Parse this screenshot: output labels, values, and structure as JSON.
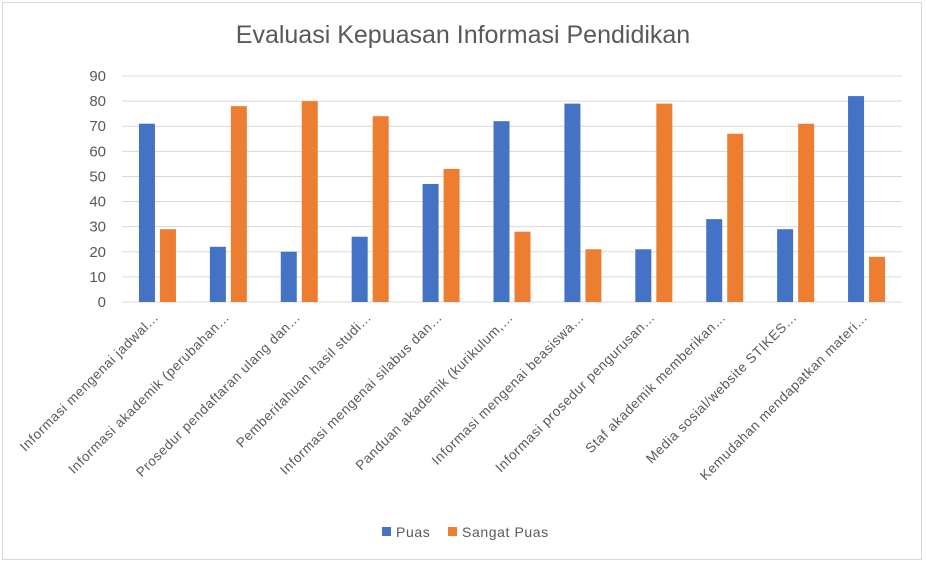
{
  "chart_data": {
    "type": "bar",
    "title": "Evaluasi Kepuasan Informasi Pendidikan",
    "xlabel": "",
    "ylabel": "",
    "ylim": [
      0,
      90
    ],
    "y_ticks": [
      "0",
      "10",
      "20",
      "30",
      "40",
      "50",
      "60",
      "70",
      "80",
      "90"
    ],
    "grid": true,
    "legend_position": "bottom",
    "categories": [
      "Informasi mengenai jadwal…",
      "Informasi akademik (perubahan…",
      "Prosedur pendaftaran ulang dan…",
      "Pemberitahuan hasil studi…",
      "Informasi mengenai silabus dan…",
      "Panduan akademik (kurikulum,…",
      "Informasi mengenai beasiswa…",
      "Informasi prosedur pengurusan…",
      "Staf akademik memberikan…",
      "Media sosial/website STIKES…",
      "Kemudahan mendapatkan materi…"
    ],
    "series": [
      {
        "name": "Puas",
        "color": "#4472c4",
        "values": [
          71,
          22,
          20,
          26,
          47,
          72,
          79,
          21,
          33,
          29,
          82
        ]
      },
      {
        "name": "Sangat Puas",
        "color": "#ed7d31",
        "values": [
          29,
          78,
          80,
          74,
          53,
          28,
          21,
          79,
          67,
          71,
          18
        ]
      }
    ]
  }
}
